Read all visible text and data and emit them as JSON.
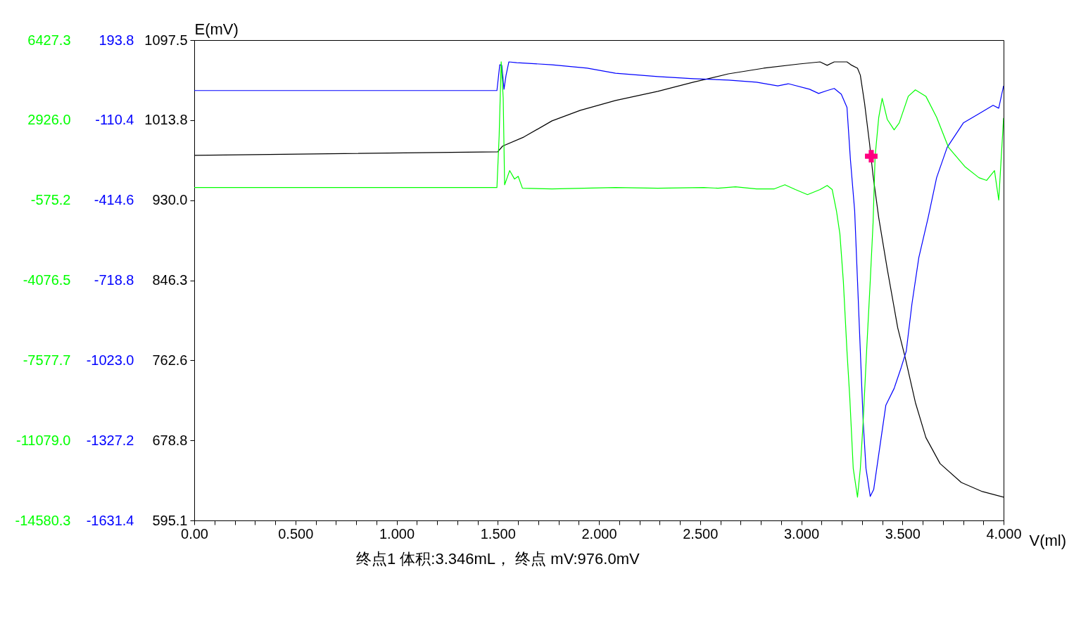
{
  "chart_data": {
    "type": "line",
    "ylabel": "E(mV)",
    "xlabel": "V(ml)",
    "xlim": [
      0,
      4.0
    ],
    "xticks": [
      {
        "value": 0,
        "label": "0.00"
      },
      {
        "value": 0.1,
        "label": null
      },
      {
        "value": 0.2,
        "label": null
      },
      {
        "value": 0.3,
        "label": null
      },
      {
        "value": 0.4,
        "label": null
      },
      {
        "value": 0.5,
        "label": "0.500"
      },
      {
        "value": 0.6,
        "label": null
      },
      {
        "value": 0.7,
        "label": null
      },
      {
        "value": 0.8,
        "label": null
      },
      {
        "value": 0.9,
        "label": null
      },
      {
        "value": 1.0,
        "label": "1.000"
      },
      {
        "value": 1.1,
        "label": null
      },
      {
        "value": 1.2,
        "label": null
      },
      {
        "value": 1.3,
        "label": null
      },
      {
        "value": 1.4,
        "label": null
      },
      {
        "value": 1.5,
        "label": "1.500"
      },
      {
        "value": 1.6,
        "label": null
      },
      {
        "value": 1.7,
        "label": null
      },
      {
        "value": 1.8,
        "label": null
      },
      {
        "value": 1.9,
        "label": null
      },
      {
        "value": 2.0,
        "label": "2.000"
      },
      {
        "value": 2.1,
        "label": null
      },
      {
        "value": 2.2,
        "label": null
      },
      {
        "value": 2.3,
        "label": null
      },
      {
        "value": 2.4,
        "label": null
      },
      {
        "value": 2.5,
        "label": "2.500"
      },
      {
        "value": 2.6,
        "label": null
      },
      {
        "value": 2.7,
        "label": null
      },
      {
        "value": 2.8,
        "label": null
      },
      {
        "value": 2.9,
        "label": null
      },
      {
        "value": 3.0,
        "label": "3.000"
      },
      {
        "value": 3.1,
        "label": null
      },
      {
        "value": 3.2,
        "label": null
      },
      {
        "value": 3.3,
        "label": null
      },
      {
        "value": 3.4,
        "label": null
      },
      {
        "value": 3.5,
        "label": "3.500"
      },
      {
        "value": 3.6,
        "label": null
      },
      {
        "value": 3.7,
        "label": null
      },
      {
        "value": 3.8,
        "label": null
      },
      {
        "value": 3.9,
        "label": null
      },
      {
        "value": 4.0,
        "label": "4.000"
      }
    ],
    "ylim": [
      595.1,
      1097.5
    ],
    "yticks": [
      {
        "value": 1097.5,
        "label": "1097.5"
      },
      {
        "value": 1013.8,
        "label": "1013.8"
      },
      {
        "value": 930,
        "label": "930.0"
      },
      {
        "value": 846.3,
        "label": "846.3"
      },
      {
        "value": 762.6,
        "label": "762.6"
      },
      {
        "value": 678.8,
        "label": "678.8"
      },
      {
        "value": 595.1,
        "label": "595.1"
      }
    ],
    "y2lim": [
      -1631.4,
      193.8
    ],
    "y2ticks": [
      {
        "value": 193.8,
        "label": "193.8"
      },
      {
        "value": -110.4,
        "label": "-110.4"
      },
      {
        "value": -414.6,
        "label": "-414.6"
      },
      {
        "value": -718.8,
        "label": "-718.8"
      },
      {
        "value": -1023,
        "label": "-1023.0"
      },
      {
        "value": -1327.2,
        "label": "-1327.2"
      },
      {
        "value": -1631.4,
        "label": "-1631.4"
      }
    ],
    "y3lim": [
      -14580.3,
      6427.3
    ],
    "y3ticks": [
      {
        "value": 6427.3,
        "label": "6427.3"
      },
      {
        "value": 2926,
        "label": "2926.0"
      },
      {
        "value": -575.2,
        "label": "-575.2"
      },
      {
        "value": -4076.5,
        "label": "-4076.5"
      },
      {
        "value": -7577.7,
        "label": "-7577.7"
      },
      {
        "value": -11079,
        "label": "-11079.0"
      },
      {
        "value": -14580.3,
        "label": "-14580.3"
      }
    ],
    "grid": false,
    "line_style": "solid",
    "annotations": [
      "终点1 体积:3.346mL， 终点 mV:976.0mV"
    ],
    "series": [
      {
        "color": "#000000",
        "x": [
          0,
          1.5,
          1.524,
          1.629,
          1.768,
          1.908,
          2.082,
          2.291,
          2.466,
          2.64,
          2.814,
          2.989,
          3.093,
          3.128,
          3.163,
          3.226,
          3.25,
          3.278,
          3.292,
          3.313,
          3.337,
          3.355,
          3.383,
          3.425,
          3.477,
          3.512,
          3.564,
          3.616,
          3.686,
          3.791,
          3.895,
          4.0
        ],
        "values": [
          977.0,
          980.7,
          986.6,
          996.1,
          1013.0,
          1024.0,
          1034.3,
          1043.9,
          1053.4,
          1062.2,
          1068.1,
          1072.5,
          1074.7,
          1071.1,
          1074.7,
          1074.7,
          1071.1,
          1068.1,
          1060.8,
          1031.4,
          990.3,
          955.7,
          911.7,
          858.1,
          796.4,
          767.0,
          718.5,
          681.8,
          654.6,
          634.8,
          625.3,
          619.4
        ]
      },
      {
        "color": "#0000ff",
        "axis": "y2",
        "x": [
          0,
          1.496,
          1.51,
          1.52,
          1.531,
          1.541,
          1.555,
          1.594,
          1.768,
          1.942,
          2.082,
          2.291,
          2.466,
          2.64,
          2.779,
          2.884,
          2.936,
          3.041,
          3.086,
          3.128,
          3.163,
          3.198,
          3.226,
          3.243,
          3.264,
          3.278,
          3.292,
          3.306,
          3.32,
          3.341,
          3.358,
          3.39,
          3.418,
          3.459,
          3.494,
          3.519,
          3.547,
          3.581,
          3.627,
          3.669,
          3.721,
          3.801,
          3.878,
          3.948,
          3.976,
          4.0
        ],
        "values": [
          2,
          2,
          100,
          98,
          7,
          60,
          111,
          108,
          100,
          87,
          68,
          55,
          47,
          42,
          34,
          20,
          28,
          7,
          -9,
          2,
          10,
          -12,
          -62,
          -260,
          -455,
          -721,
          -988,
          -1255,
          -1434,
          -1540,
          -1514,
          -1343,
          -1194,
          -1130,
          -1050,
          -988,
          -809,
          -633,
          -481,
          -329,
          -214,
          -121,
          -86,
          -54,
          -65,
          20
        ]
      },
      {
        "color": "#00ff00",
        "axis": "y3",
        "x": [
          0,
          1.496,
          1.507,
          1.517,
          1.527,
          1.534,
          1.559,
          1.583,
          1.601,
          1.622,
          1.768,
          2.082,
          2.291,
          2.518,
          2.588,
          2.675,
          2.779,
          2.867,
          2.919,
          2.971,
          3.031,
          3.093,
          3.128,
          3.153,
          3.174,
          3.191,
          3.208,
          3.226,
          3.24,
          3.257,
          3.278,
          3.292,
          3.306,
          3.323,
          3.341,
          3.355,
          3.365,
          3.383,
          3.4,
          3.425,
          3.459,
          3.484,
          3.529,
          3.564,
          3.616,
          3.669,
          3.728,
          3.808,
          3.878,
          3.916,
          3.955,
          3.976,
          4.0
        ],
        "values": [
          -20,
          -20,
          2250,
          5480,
          3880,
          100,
          720,
          350,
          470,
          -50,
          -80,
          -20,
          -50,
          -20,
          -50,
          10,
          -80,
          -80,
          100,
          -110,
          -330,
          -110,
          70,
          -110,
          -1040,
          -2050,
          -4110,
          -7180,
          -9230,
          -12310,
          -13560,
          -12310,
          -10250,
          -7180,
          -4110,
          -1560,
          1330,
          3050,
          3880,
          2960,
          2500,
          2800,
          3970,
          4250,
          3970,
          3050,
          1730,
          900,
          410,
          290,
          720,
          -570,
          3020
        ]
      },
      {
        "type": "scatter",
        "marker": "cross",
        "color": "#ff0080",
        "x": [
          3.346
        ],
        "values": [
          976.0
        ]
      }
    ]
  }
}
